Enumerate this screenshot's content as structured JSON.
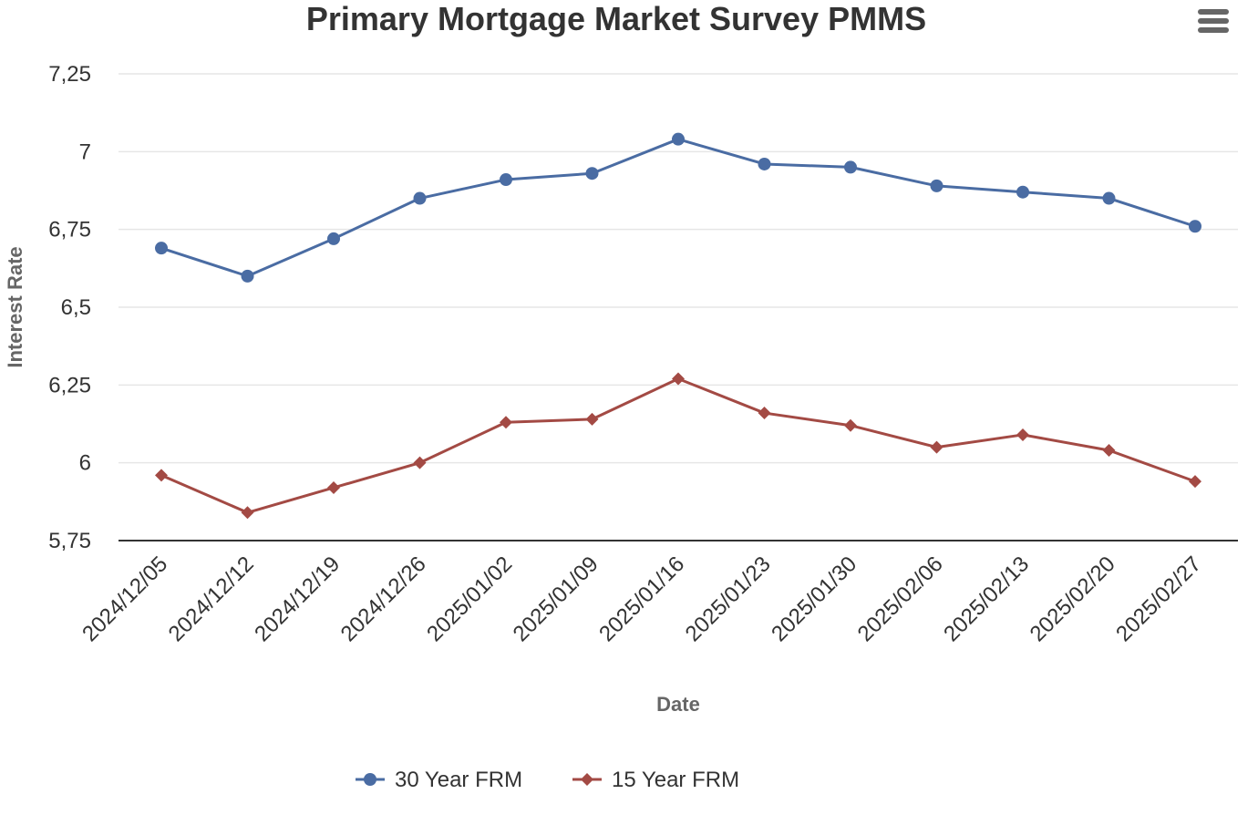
{
  "chart_data": {
    "type": "line",
    "title": "Primary Mortgage Market Survey PMMS",
    "xlabel": "Date",
    "ylabel": "Interest Rate",
    "categories": [
      "2024/12/05",
      "2024/12/12",
      "2024/12/19",
      "2024/12/26",
      "2025/01/02",
      "2025/01/09",
      "2025/01/16",
      "2025/01/23",
      "2025/01/30",
      "2025/02/06",
      "2025/02/13",
      "2025/02/20",
      "2025/02/27"
    ],
    "ylim": [
      5.75,
      7.25
    ],
    "yticks": [
      5.75,
      6,
      6.25,
      6.5,
      6.75,
      7,
      7.25
    ],
    "ytick_labels": [
      "5,75",
      "6",
      "6,25",
      "6,5",
      "6,75",
      "7",
      "7,25"
    ],
    "grid": true,
    "legend_position": "bottom",
    "series": [
      {
        "name": "30 Year FRM",
        "color": "#4a6ca3",
        "marker": "circle",
        "values": [
          6.69,
          6.6,
          6.72,
          6.85,
          6.91,
          6.93,
          7.04,
          6.96,
          6.95,
          6.89,
          6.87,
          6.85,
          6.76
        ]
      },
      {
        "name": "15 Year FRM",
        "color": "#a34a44",
        "marker": "diamond",
        "values": [
          5.96,
          5.84,
          5.92,
          6.0,
          6.13,
          6.14,
          6.27,
          6.16,
          6.12,
          6.05,
          6.09,
          6.04,
          5.94
        ]
      }
    ]
  },
  "toolbar": {
    "menu_icon": "hamburger-menu-icon"
  }
}
